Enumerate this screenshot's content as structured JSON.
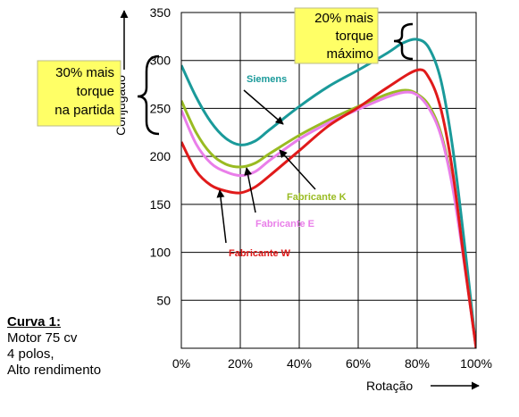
{
  "chart_data": {
    "type": "line",
    "xlabel": "Rotação",
    "ylabel": "Conjugado",
    "x_ticks": [
      "0%",
      "20%",
      "40%",
      "60%",
      "80%",
      "100%"
    ],
    "y_ticks": [
      "50",
      "100",
      "150",
      "200",
      "250",
      "300",
      "350"
    ],
    "xlim": [
      0,
      100
    ],
    "ylim": [
      0,
      350
    ],
    "grid": true,
    "series": [
      {
        "name": "Siemens",
        "color": "#1a9a9a",
        "x": [
          0,
          5,
          10,
          15,
          20,
          25,
          30,
          40,
          50,
          60,
          70,
          75,
          80,
          84,
          88,
          92,
          96,
          100
        ],
        "y": [
          295,
          262,
          236,
          219,
          212,
          216,
          228,
          252,
          273,
          290,
          308,
          318,
          322,
          313,
          280,
          210,
          110,
          0
        ]
      },
      {
        "name": "Fabricante K",
        "color": "#99bb22",
        "x": [
          0,
          5,
          10,
          15,
          20,
          25,
          30,
          40,
          50,
          60,
          70,
          76,
          80,
          84,
          88,
          92,
          96,
          100
        ],
        "y": [
          258,
          225,
          203,
          192,
          189,
          193,
          203,
          222,
          238,
          252,
          265,
          269,
          265,
          253,
          225,
          170,
          90,
          0
        ]
      },
      {
        "name": "Fabricante E",
        "color": "#e97ee9",
        "x": [
          0,
          5,
          10,
          15,
          20,
          25,
          30,
          40,
          50,
          60,
          70,
          76,
          80,
          84,
          88,
          92,
          96,
          100
        ],
        "y": [
          248,
          213,
          193,
          184,
          180,
          184,
          196,
          218,
          235,
          249,
          262,
          267,
          264,
          250,
          222,
          168,
          88,
          0
        ]
      },
      {
        "name": "Fabricante W",
        "color": "#e01a1a",
        "x": [
          0,
          5,
          10,
          15,
          20,
          25,
          30,
          40,
          50,
          60,
          70,
          80,
          84,
          88,
          92,
          96,
          100
        ],
        "y": [
          215,
          185,
          170,
          164,
          162,
          168,
          180,
          206,
          232,
          251,
          272,
          290,
          282,
          250,
          185,
          90,
          0
        ]
      }
    ]
  },
  "callouts": {
    "start_torque": [
      "30% mais",
      "torque",
      "na partida"
    ],
    "max_torque": [
      "20% mais",
      "torque",
      "máximo"
    ]
  },
  "curve_note": {
    "title": "Curva 1:",
    "lines": [
      "Motor 75 cv",
      "4 polos,",
      "Alto rendimento"
    ]
  }
}
